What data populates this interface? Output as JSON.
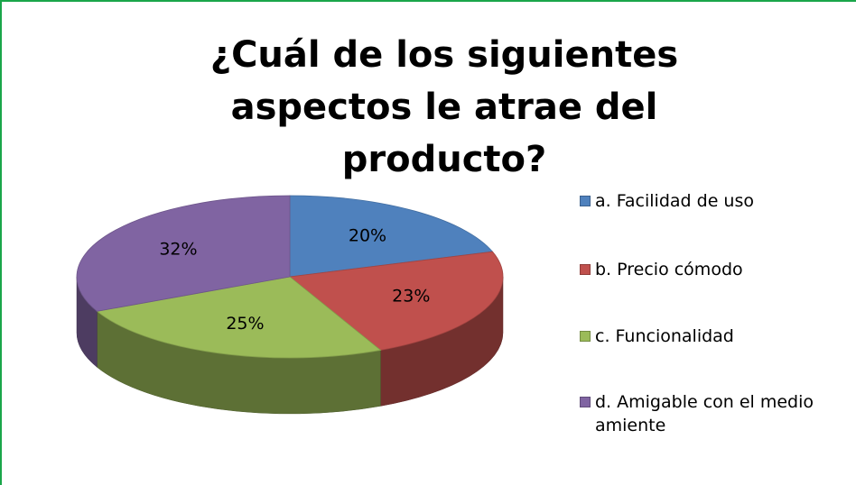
{
  "chart_data": {
    "type": "pie",
    "title": "¿Cuál de los siguientes aspectos le atrae del producto?",
    "categories": [
      "a. Facilidad de uso",
      "b. Precio cómodo",
      "c. Funcionalidad",
      "d. Amigable con el medio amiente"
    ],
    "values": [
      20,
      23,
      25,
      32
    ],
    "value_labels": [
      "20%",
      "23%",
      "25%",
      "32%"
    ],
    "colors": [
      "#4f81bd",
      "#c0504d",
      "#9bbb59",
      "#8064a2"
    ],
    "legend": "right"
  }
}
